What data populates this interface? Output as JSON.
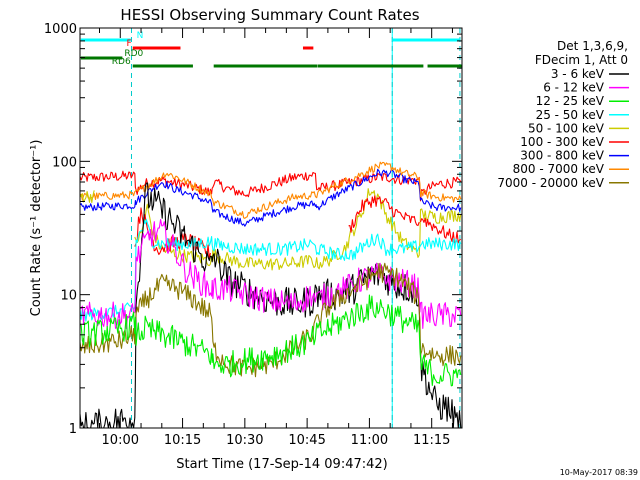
{
  "chart_data": {
    "type": "line",
    "title": "HESSI Observing Summary Count Rates",
    "xlabel": "Start Time (17-Sep-14 09:47:42)",
    "ylabel": "Count Rate (s⁻¹ detector⁻¹)",
    "yscale": "log",
    "ylim": [
      1,
      1000
    ],
    "xlim_minutes": [
      -9.7,
      82.3
    ],
    "x_ticks": [
      {
        "label": "10:00",
        "minutes": 0
      },
      {
        "label": "10:15",
        "minutes": 15
      },
      {
        "label": "10:30",
        "minutes": 30
      },
      {
        "label": "10:45",
        "minutes": 45
      },
      {
        "label": "11:00",
        "minutes": 60
      },
      {
        "label": "11:15",
        "minutes": 75
      }
    ],
    "y_ticks": [
      {
        "label": "1",
        "value": 1
      },
      {
        "label": "10",
        "value": 10
      },
      {
        "label": "100",
        "value": 100
      },
      {
        "label": "1000",
        "value": 1000
      }
    ],
    "legend": {
      "placement": "right",
      "header": [
        "Det 1,3,6,9,",
        "FDecim 1, Att 0"
      ],
      "entries": [
        {
          "label": "3 - 6 keV",
          "color": "#000000"
        },
        {
          "label": "6 - 12 keV",
          "color": "#ff00ff"
        },
        {
          "label": "12 - 25 keV",
          "color": "#00ee00"
        },
        {
          "label": "25 - 50 keV",
          "color": "#00ffff"
        },
        {
          "label": "50 - 100 keV",
          "color": "#cccc00"
        },
        {
          "label": "100 - 300 keV",
          "color": "#ff0000"
        },
        {
          "label": "300 - 800 keV",
          "color": "#0000ff"
        },
        {
          "label": "800 - 7000 keV",
          "color": "#ff8800"
        },
        {
          "label": "7000 - 20000 keV",
          "color": "#887700"
        }
      ]
    },
    "series": [
      {
        "color": "#ff0000",
        "noise": 0.04,
        "points": [
          [
            -9.7,
            75
          ],
          [
            3.5,
            78
          ],
          [
            3.8,
            60
          ],
          [
            6,
            68
          ],
          [
            10,
            72
          ],
          [
            16,
            66
          ],
          [
            22,
            58
          ],
          [
            22.3,
            70
          ],
          [
            26,
            62
          ],
          [
            30,
            57
          ],
          [
            36,
            66
          ],
          [
            42,
            76
          ],
          [
            47,
            80
          ],
          [
            47.3,
            62
          ],
          [
            52,
            66
          ],
          [
            58,
            72
          ],
          [
            62,
            76
          ],
          [
            64.5,
            76
          ],
          [
            67,
            73
          ],
          [
            72,
            72
          ],
          [
            72.3,
            55
          ],
          [
            74,
            62
          ],
          [
            77,
            68
          ],
          [
            82,
            70
          ]
        ]
      },
      {
        "color": "#0000ff",
        "noise": 0.03,
        "points": [
          [
            -9.7,
            45
          ],
          [
            3.5,
            47
          ],
          [
            3.8,
            50
          ],
          [
            7,
            60
          ],
          [
            10,
            70
          ],
          [
            13,
            62
          ],
          [
            18,
            55
          ],
          [
            22,
            48
          ],
          [
            22.3,
            42
          ],
          [
            26,
            38
          ],
          [
            30,
            34
          ],
          [
            36,
            40
          ],
          [
            42,
            46
          ],
          [
            47,
            48
          ],
          [
            47.3,
            45
          ],
          [
            52,
            56
          ],
          [
            58,
            70
          ],
          [
            62,
            82
          ],
          [
            65,
            82
          ],
          [
            68,
            74
          ],
          [
            72,
            68
          ],
          [
            72.3,
            50
          ],
          [
            76,
            45
          ],
          [
            82,
            45
          ]
        ]
      },
      {
        "color": "#ff8800",
        "noise": 0.03,
        "points": [
          [
            -9.7,
            54
          ],
          [
            3.5,
            56
          ],
          [
            3.8,
            58
          ],
          [
            8,
            70
          ],
          [
            11,
            82
          ],
          [
            14,
            75
          ],
          [
            18,
            65
          ],
          [
            22,
            56
          ],
          [
            22.3,
            50
          ],
          [
            26,
            45
          ],
          [
            30,
            40
          ],
          [
            36,
            47
          ],
          [
            42,
            54
          ],
          [
            47,
            56
          ],
          [
            47.3,
            56
          ],
          [
            52,
            66
          ],
          [
            58,
            80
          ],
          [
            62,
            92
          ],
          [
            65,
            92
          ],
          [
            68,
            82
          ],
          [
            72,
            76
          ],
          [
            72.3,
            58
          ],
          [
            76,
            54
          ],
          [
            82,
            52
          ]
        ]
      },
      {
        "color": "#cccc00",
        "noise": 0.05,
        "points": [
          [
            -9.7,
            55
          ],
          [
            -6,
            55
          ],
          [
            -5.7,
            0
          ],
          [
            3.5,
            25
          ],
          [
            5,
            28
          ],
          [
            6.5,
            45
          ],
          [
            8,
            28
          ],
          [
            10,
            22
          ],
          [
            14,
            20
          ],
          [
            18,
            19
          ],
          [
            22,
            18
          ],
          [
            22.3,
            20
          ],
          [
            30,
            17
          ],
          [
            40,
            17
          ],
          [
            46,
            18
          ],
          [
            47.3,
            17
          ],
          [
            50,
            18
          ],
          [
            54,
            22
          ],
          [
            58,
            40
          ],
          [
            60,
            60
          ],
          [
            62,
            56
          ],
          [
            64,
            40
          ],
          [
            68,
            25
          ],
          [
            72,
            20
          ],
          [
            72.3,
            40
          ],
          [
            76,
            38
          ],
          [
            82,
            40
          ]
        ]
      },
      {
        "color": "#ff0000",
        "noise": 0.06,
        "points": [
          [
            3.5,
            22
          ],
          [
            5,
            45
          ],
          [
            6.5,
            30
          ],
          [
            9,
            22
          ],
          [
            12,
            24
          ],
          [
            16,
            26
          ],
          [
            20,
            22
          ],
          [
            22,
            20
          ],
          [
            22.3,
            0
          ]
        ]
      },
      {
        "color": "#ff0000",
        "noise": 0.05,
        "points": [
          [
            72.3,
            38
          ],
          [
            76,
            32
          ],
          [
            79,
            28
          ],
          [
            82,
            26
          ]
        ]
      },
      {
        "color": "#ff0000",
        "noise": 0.05,
        "points": [
          [
            55,
            30
          ],
          [
            58,
            45
          ],
          [
            61,
            52
          ],
          [
            64,
            48
          ],
          [
            66,
            42
          ],
          [
            69,
            37
          ],
          [
            72,
            35
          ]
        ]
      },
      {
        "color": "#00ffff",
        "noise": 0.05,
        "points": [
          [
            -9.7,
            7
          ],
          [
            0,
            7.5
          ],
          [
            3.5,
            8
          ],
          [
            3.8,
            25
          ],
          [
            6,
            35
          ],
          [
            8,
            25
          ],
          [
            10,
            24
          ],
          [
            14,
            24
          ],
          [
            18,
            24
          ],
          [
            22,
            25
          ],
          [
            22.3,
            24
          ],
          [
            30,
            22
          ],
          [
            40,
            22
          ],
          [
            46,
            24
          ],
          [
            47.3,
            22
          ],
          [
            52,
            20
          ],
          [
            56,
            20
          ],
          [
            60,
            25
          ],
          [
            62,
            27
          ],
          [
            64,
            22
          ],
          [
            68,
            22
          ],
          [
            72,
            23
          ],
          [
            72.3,
            24
          ],
          [
            76,
            24
          ],
          [
            82,
            24
          ]
        ]
      },
      {
        "color": "#000000",
        "noise": 0.12,
        "points": [
          [
            -9.7,
            1
          ],
          [
            -2,
            1.1
          ],
          [
            3.5,
            1.2
          ],
          [
            3.8,
            8
          ],
          [
            6,
            55
          ],
          [
            8,
            50
          ],
          [
            11,
            40
          ],
          [
            14,
            30
          ],
          [
            18,
            22
          ],
          [
            22,
            16
          ],
          [
            22.3,
            20
          ],
          [
            26,
            13
          ],
          [
            30,
            11
          ],
          [
            36,
            9
          ],
          [
            42,
            8.5
          ],
          [
            46,
            9
          ],
          [
            47.3,
            10
          ],
          [
            52,
            10
          ],
          [
            56,
            11
          ],
          [
            60,
            14
          ],
          [
            63,
            14
          ],
          [
            66,
            12
          ],
          [
            70,
            11
          ],
          [
            72,
            10
          ],
          [
            72.3,
            3
          ],
          [
            76,
            1.5
          ],
          [
            79,
            1.4
          ],
          [
            82,
            1
          ]
        ]
      },
      {
        "color": "#ff00ff",
        "noise": 0.1,
        "points": [
          [
            -9.7,
            7
          ],
          [
            0,
            7
          ],
          [
            3.5,
            7
          ],
          [
            3.8,
            18
          ],
          [
            7,
            28
          ],
          [
            10,
            30
          ],
          [
            13,
            22
          ],
          [
            16,
            15
          ],
          [
            20,
            12
          ],
          [
            22,
            11
          ],
          [
            22.3,
            11
          ],
          [
            26,
            11
          ],
          [
            30,
            10
          ],
          [
            36,
            9
          ],
          [
            42,
            8.5
          ],
          [
            46,
            10
          ],
          [
            47.3,
            9
          ],
          [
            50,
            10
          ],
          [
            54,
            11
          ],
          [
            58,
            13
          ],
          [
            62,
            14
          ],
          [
            66,
            13
          ],
          [
            70,
            12
          ],
          [
            72,
            11
          ],
          [
            72.3,
            7
          ],
          [
            76,
            7
          ],
          [
            82,
            7
          ]
        ]
      },
      {
        "color": "#887700",
        "noise": 0.08,
        "points": [
          [
            -9.7,
            4
          ],
          [
            0,
            4.5
          ],
          [
            3.5,
            5
          ],
          [
            3.8,
            7
          ],
          [
            6,
            9
          ],
          [
            10,
            12
          ],
          [
            14,
            11
          ],
          [
            18,
            9
          ],
          [
            22,
            7
          ],
          [
            22.3,
            4
          ],
          [
            26,
            3
          ],
          [
            30,
            2.8
          ],
          [
            36,
            3
          ],
          [
            42,
            4
          ],
          [
            46,
            5
          ],
          [
            47.3,
            6
          ],
          [
            50,
            8
          ],
          [
            54,
            10
          ],
          [
            58,
            12
          ],
          [
            62,
            15
          ],
          [
            66,
            14
          ],
          [
            70,
            11
          ],
          [
            72,
            9
          ],
          [
            72.3,
            4
          ],
          [
            76,
            3.5
          ],
          [
            82,
            3.5
          ]
        ]
      },
      {
        "color": "#00ee00",
        "noise": 0.1,
        "points": [
          [
            -9.7,
            5
          ],
          [
            0,
            5.5
          ],
          [
            3.5,
            6
          ],
          [
            3.8,
            5
          ],
          [
            6,
            5.5
          ],
          [
            10,
            5
          ],
          [
            14,
            4.5
          ],
          [
            18,
            4
          ],
          [
            22,
            3.5
          ],
          [
            22.3,
            3
          ],
          [
            26,
            3
          ],
          [
            30,
            3.2
          ],
          [
            36,
            3.5
          ],
          [
            42,
            4
          ],
          [
            46,
            4.5
          ],
          [
            47.3,
            5
          ],
          [
            52,
            6
          ],
          [
            56,
            7
          ],
          [
            60,
            8
          ],
          [
            63,
            8
          ],
          [
            66,
            7
          ],
          [
            70,
            6
          ],
          [
            72,
            5.5
          ],
          [
            72.3,
            3
          ],
          [
            76,
            2.5
          ],
          [
            82,
            2.5
          ]
        ]
      }
    ],
    "annotations": {
      "saa_lines_minutes": [
        -9.7,
        65.5,
        82.3
      ],
      "night_lines_minutes": [
        2.7,
        65.5,
        81.8
      ],
      "bars": [
        {
          "label": "N",
          "color": "#00ffff",
          "segments": [
            [
              -9.5,
              2.5
            ],
            [
              65.5,
              81.8
            ]
          ]
        },
        {
          "label": "F",
          "color": "#ff0000",
          "segments": [
            [
              3.0,
              14.5
            ],
            [
              44.0,
              46.5
            ]
          ]
        },
        {
          "label": "RD0",
          "color": "#007700",
          "segments": [
            [
              -9.5,
              0.5
            ]
          ]
        },
        {
          "label": "RD6",
          "color": "#007700",
          "segments": [
            [
              3.0,
              17.5
            ],
            [
              22.5,
              47.5
            ]
          ]
        },
        {
          "label": "",
          "color": "#007700",
          "segments": [
            [
              47.6,
              73.0
            ],
            [
              74.0,
              82.3
            ]
          ]
        }
      ]
    }
  },
  "footer": {
    "timestamp": "10-May-2017 08:39"
  }
}
